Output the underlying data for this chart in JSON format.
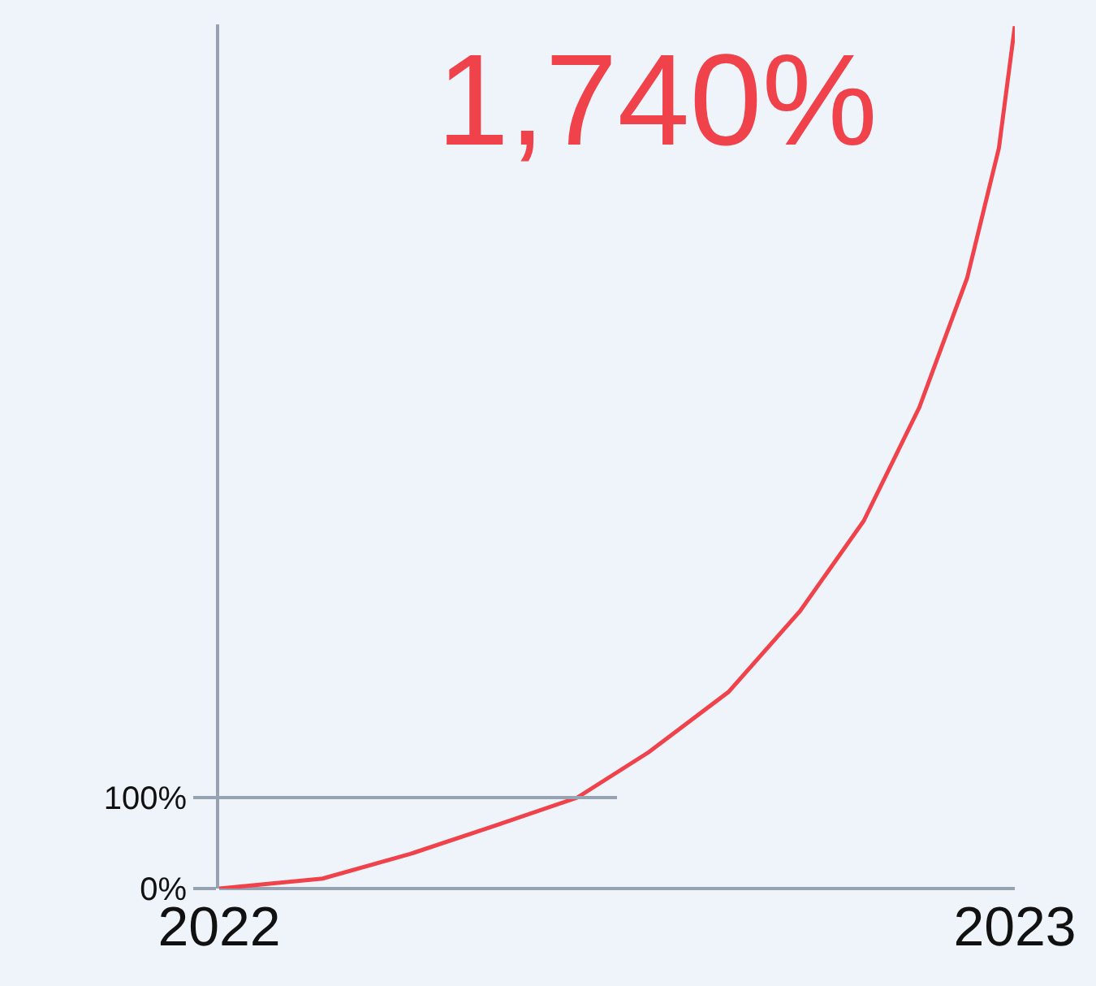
{
  "chart_data": {
    "type": "line",
    "x": [
      2022.0,
      2022.13,
      2022.24,
      2022.36,
      2022.45,
      2022.54,
      2022.64,
      2022.73,
      2022.81,
      2022.88,
      2022.94,
      2022.98,
      2023.0
    ],
    "values": [
      0,
      11,
      38,
      73,
      100,
      150,
      216,
      305,
      404,
      529,
      671,
      814,
      948
    ],
    "color": "#f0424a",
    "xlim": [
      2022,
      2023
    ],
    "xticks": [
      2022,
      2023
    ],
    "ylim": [
      0,
      950
    ],
    "yticks": [
      {
        "value": 0,
        "label": "0%"
      },
      {
        "value": 100,
        "label": "100%"
      }
    ],
    "ref_lines": [
      {
        "axis": "y",
        "value": 100,
        "color": "#97a3b3"
      }
    ],
    "annotations": [
      "1,740%"
    ],
    "grid": false,
    "legend": false,
    "marker": "none",
    "line_style": "solid"
  }
}
